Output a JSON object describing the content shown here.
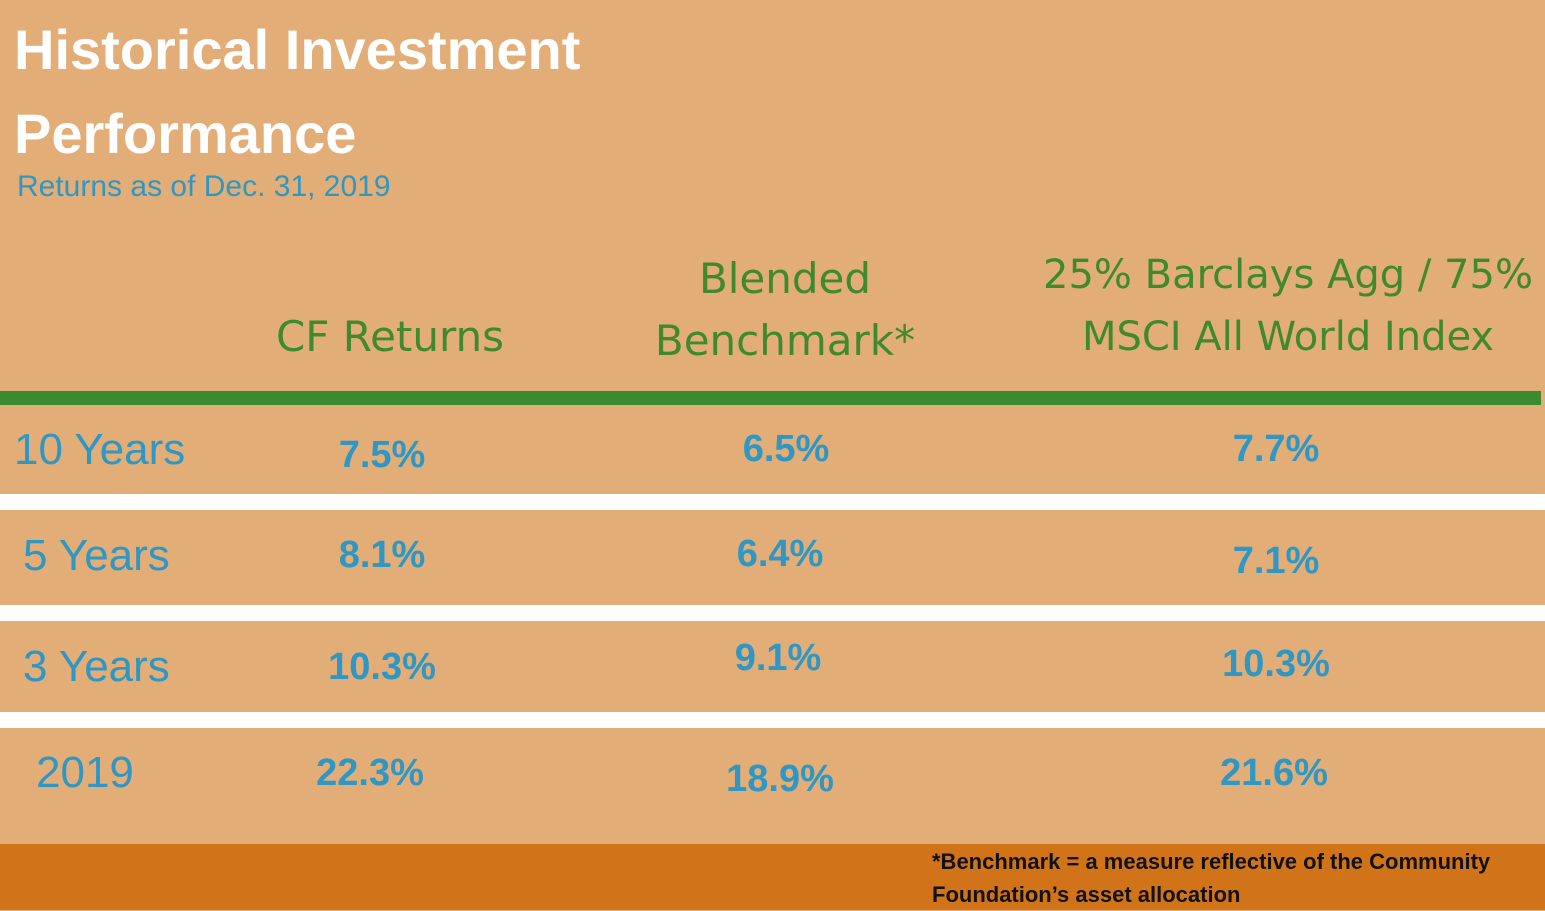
{
  "title": {
    "line1": "Historical Investment",
    "line2": "Performance"
  },
  "subtitle": "Returns as of Dec. 31, 2019",
  "columns": [
    {
      "lines": [
        "CF Returns"
      ]
    },
    {
      "lines": [
        "Blended",
        "Benchmark*"
      ]
    },
    {
      "lines": [
        "25% Barclays Agg / 75%",
        "MSCI All World Index"
      ]
    }
  ],
  "rows": [
    {
      "label": "10 Years",
      "values": [
        "7.5%",
        "6.5%",
        "7.7%"
      ]
    },
    {
      "label": "5 Years",
      "values": [
        "8.1%",
        "6.4%",
        "7.1%"
      ]
    },
    {
      "label": "3 Years",
      "values": [
        "10.3%",
        "9.1%",
        "10.3%"
      ]
    },
    {
      "label": "2019",
      "values": [
        "22.3%",
        "18.9%",
        "21.6%"
      ]
    }
  ],
  "footnote": "*Benchmark = a measure reflective of the Community Foundation’s asset allocation",
  "colors": {
    "background": "#e3ad78",
    "title": "#ffffff",
    "accent_blue": "#2e97c3",
    "header_green": "#3f8a2c",
    "rule_green": "#3a8a2f",
    "footer": "#d17419"
  },
  "chart_data": {
    "type": "table",
    "title": "Historical Investment Performance",
    "subtitle": "Returns as of Dec. 31, 2019",
    "columns": [
      "CF Returns",
      "Blended Benchmark*",
      "25% Barclays Agg / 75% MSCI All World Index"
    ],
    "categories": [
      "10 Years",
      "5 Years",
      "3 Years",
      "2019"
    ],
    "series": [
      {
        "name": "CF Returns",
        "values": [
          7.5,
          8.1,
          10.3,
          22.3
        ]
      },
      {
        "name": "Blended Benchmark*",
        "values": [
          6.5,
          6.4,
          9.1,
          18.9
        ]
      },
      {
        "name": "25% Barclays Agg / 75% MSCI All World Index",
        "values": [
          7.7,
          7.1,
          10.3,
          21.6
        ]
      }
    ],
    "unit": "%"
  }
}
